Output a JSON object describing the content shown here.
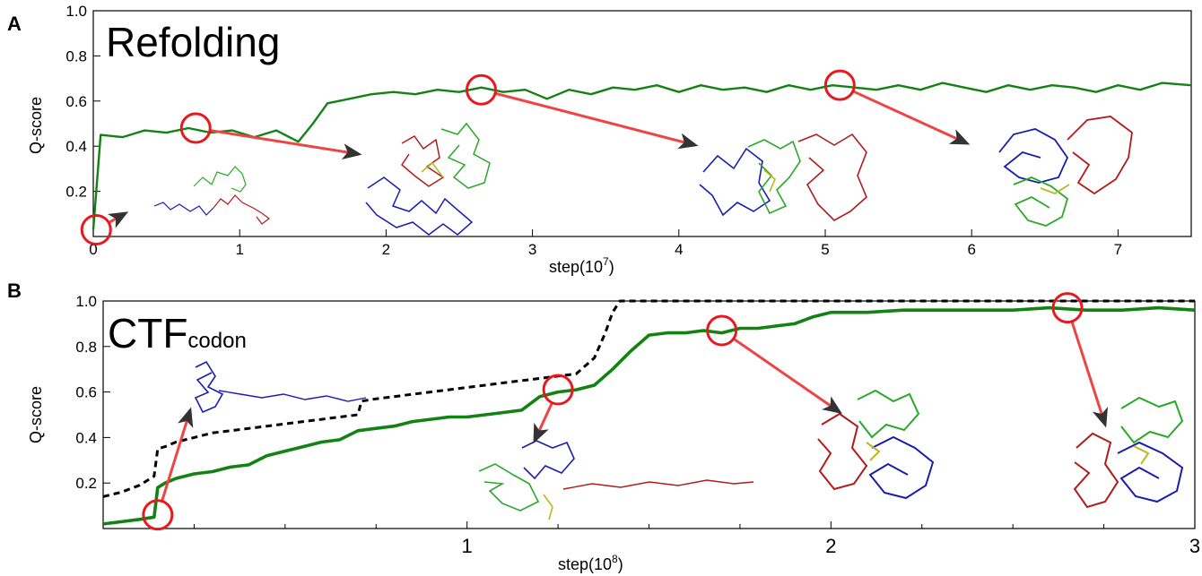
{
  "panels": {
    "a": {
      "letter": "A",
      "title": "Refolding"
    },
    "b": {
      "letter": "B",
      "title": "CTF",
      "title_sub": "codon"
    }
  },
  "icons": {
    "snapshot_marker": "red-circle-icon",
    "snapshot_arrow": "arrow-icon",
    "structure": "protein-structure-icon"
  },
  "colors": {
    "q_score": "#138213",
    "reference_dashed": "#000000",
    "marker": "#e8191e",
    "arrow_line": "#ee4444",
    "arrow_head": "#333333",
    "domain_1": "#1b1bb0",
    "domain_2": "#b01b1b",
    "domain_3": "#2aa82a",
    "linker": "#b8b820"
  },
  "chart_data": [
    {
      "type": "line",
      "panel": "A",
      "title": "Refolding",
      "xlabel": "step(10^7)",
      "xlabel_base": "step(10",
      "xlabel_exp": "7",
      "xlabel_end": ")",
      "ylabel": "Q-score",
      "xlim": [
        0,
        7.5
      ],
      "ylim": [
        0,
        1.0
      ],
      "xticks": [
        "0",
        "1",
        "2",
        "3",
        "4",
        "5",
        "6",
        "7"
      ],
      "yticks": [
        "0.2",
        "0.4",
        "0.6",
        "0.8",
        "1.0"
      ],
      "series": [
        {
          "x": [
            0.0,
            0.05,
            0.2,
            0.35,
            0.5,
            0.65,
            0.8,
            0.95,
            1.1,
            1.25,
            1.4,
            1.5,
            1.6,
            1.75,
            1.9,
            2.05,
            2.2,
            2.35,
            2.5,
            2.65,
            2.8,
            2.95,
            3.1,
            3.25,
            3.4,
            3.55,
            3.7,
            3.85,
            4.0,
            4.15,
            4.3,
            4.45,
            4.6,
            4.75,
            4.9,
            5.05,
            5.2,
            5.35,
            5.5,
            5.65,
            5.8,
            5.95,
            6.1,
            6.25,
            6.4,
            6.55,
            6.7,
            6.85,
            7.0,
            7.15,
            7.3,
            7.5
          ],
          "values": [
            0.03,
            0.45,
            0.44,
            0.47,
            0.46,
            0.48,
            0.46,
            0.47,
            0.44,
            0.47,
            0.42,
            0.5,
            0.59,
            0.61,
            0.63,
            0.64,
            0.63,
            0.65,
            0.64,
            0.66,
            0.64,
            0.65,
            0.61,
            0.65,
            0.63,
            0.66,
            0.65,
            0.67,
            0.64,
            0.67,
            0.65,
            0.66,
            0.64,
            0.67,
            0.65,
            0.67,
            0.66,
            0.65,
            0.67,
            0.65,
            0.68,
            0.66,
            0.64,
            0.67,
            0.65,
            0.67,
            0.66,
            0.64,
            0.67,
            0.65,
            0.68,
            0.67
          ]
        }
      ],
      "snapshots": [
        {
          "x": 0.02,
          "y": 0.03
        },
        {
          "x": 0.7,
          "y": 0.48
        },
        {
          "x": 2.65,
          "y": 0.65
        },
        {
          "x": 5.1,
          "y": 0.67
        }
      ]
    },
    {
      "type": "line",
      "panel": "B",
      "title": "CTF codon",
      "xlabel": "step(10^8)",
      "xlabel_base": "step(10",
      "xlabel_exp": "8",
      "xlabel_end": ")",
      "ylabel": "Q-score",
      "xlim": [
        0,
        3.0
      ],
      "ylim": [
        0,
        1.0
      ],
      "xticks": [
        "1",
        "2",
        "3"
      ],
      "yticks": [
        "0.2",
        "0.4",
        "0.6",
        "0.8",
        "1.0"
      ],
      "series": [
        {
          "x": [
            0.0,
            0.05,
            0.1,
            0.14,
            0.15,
            0.17,
            0.2,
            0.25,
            0.3,
            0.35,
            0.4,
            0.45,
            0.5,
            0.55,
            0.6,
            0.65,
            0.7,
            0.75,
            0.8,
            0.85,
            0.9,
            0.95,
            1.0,
            1.05,
            1.1,
            1.15,
            1.2,
            1.25,
            1.3,
            1.35,
            1.4,
            1.45,
            1.5,
            1.55,
            1.6,
            1.65,
            1.7,
            1.75,
            1.8,
            1.85,
            1.9,
            1.95,
            2.0,
            2.1,
            2.2,
            2.3,
            2.4,
            2.5,
            2.6,
            2.7,
            2.8,
            2.9,
            3.0
          ],
          "values": [
            0.02,
            0.03,
            0.04,
            0.05,
            0.18,
            0.2,
            0.22,
            0.24,
            0.25,
            0.27,
            0.28,
            0.32,
            0.34,
            0.36,
            0.38,
            0.39,
            0.43,
            0.44,
            0.45,
            0.47,
            0.48,
            0.49,
            0.49,
            0.5,
            0.51,
            0.52,
            0.58,
            0.6,
            0.61,
            0.63,
            0.7,
            0.78,
            0.85,
            0.86,
            0.86,
            0.87,
            0.86,
            0.88,
            0.88,
            0.89,
            0.9,
            0.93,
            0.95,
            0.95,
            0.96,
            0.96,
            0.96,
            0.96,
            0.97,
            0.96,
            0.96,
            0.97,
            0.96
          ]
        },
        {
          "x": [
            0.0,
            0.05,
            0.1,
            0.14,
            0.15,
            0.17,
            0.2,
            0.25,
            0.3,
            0.35,
            0.4,
            0.45,
            0.5,
            0.55,
            0.6,
            0.65,
            0.7,
            0.71,
            0.75,
            0.8,
            0.85,
            0.9,
            0.95,
            1.0,
            1.05,
            1.1,
            1.15,
            1.2,
            1.25,
            1.3,
            1.35,
            1.38,
            1.4,
            1.42,
            1.45,
            1.5,
            1.6,
            1.7,
            1.8,
            1.9,
            2.0,
            2.2,
            2.4,
            2.6,
            2.8,
            3.0
          ],
          "values": [
            0.14,
            0.16,
            0.19,
            0.23,
            0.35,
            0.36,
            0.38,
            0.4,
            0.42,
            0.43,
            0.44,
            0.45,
            0.46,
            0.47,
            0.48,
            0.49,
            0.5,
            0.56,
            0.57,
            0.58,
            0.59,
            0.6,
            0.61,
            0.62,
            0.63,
            0.64,
            0.65,
            0.66,
            0.67,
            0.68,
            0.75,
            0.86,
            0.95,
            1.0,
            1.0,
            1.0,
            1.0,
            1.0,
            1.0,
            1.0,
            1.0,
            1.0,
            1.0,
            1.0,
            1.0,
            1.0
          ]
        }
      ],
      "snapshots": [
        {
          "x": 0.15,
          "y": 0.06
        },
        {
          "x": 1.25,
          "y": 0.61
        },
        {
          "x": 1.7,
          "y": 0.87
        },
        {
          "x": 2.65,
          "y": 0.97
        }
      ]
    }
  ]
}
